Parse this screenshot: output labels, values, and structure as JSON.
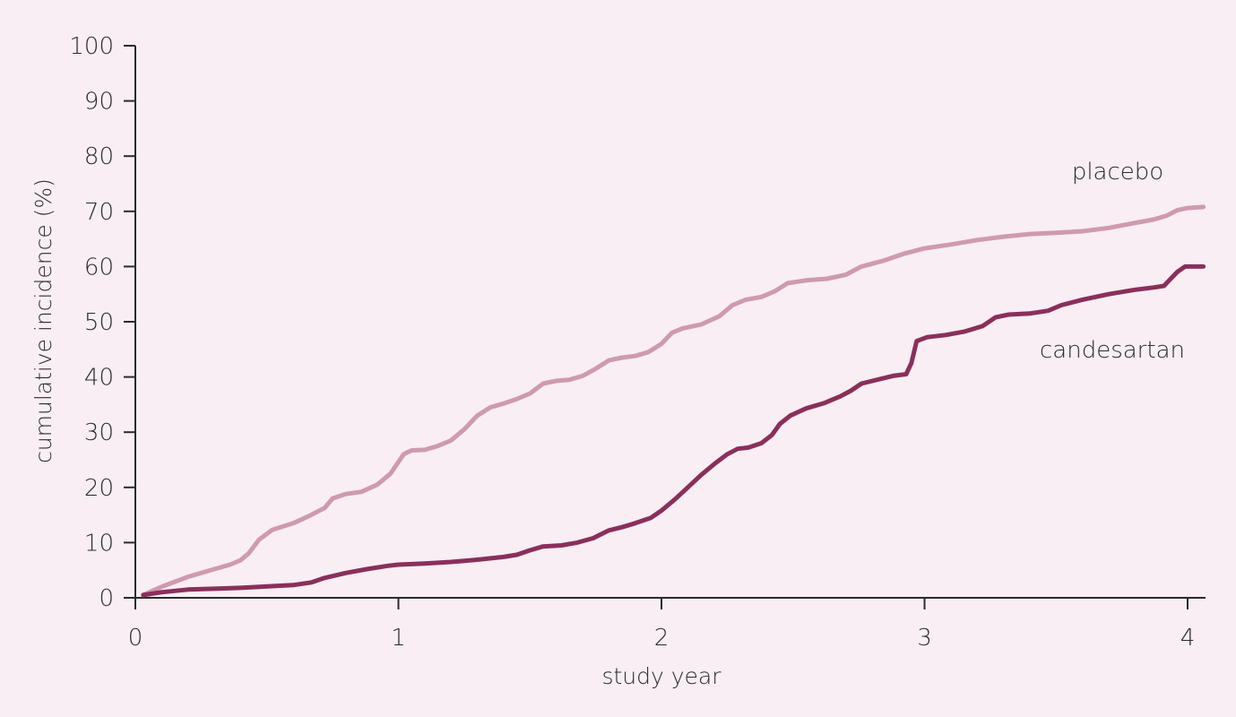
{
  "chart_data": {
    "type": "line",
    "title": "",
    "xlabel": "study year",
    "ylabel": "cumulative incidence (%)",
    "xlim": [
      0,
      4.05
    ],
    "ylim": [
      0,
      100
    ],
    "x_ticks": [
      0,
      1,
      2,
      3,
      4
    ],
    "y_ticks": [
      0,
      10,
      20,
      30,
      40,
      50,
      60,
      70,
      80,
      90,
      100
    ],
    "grid": false,
    "legend": "inline labels at right end of lines",
    "series": [
      {
        "name": "placebo",
        "color": "#cf9aae",
        "points": [
          [
            0.03,
            0.5
          ],
          [
            0.1,
            2.0
          ],
          [
            0.2,
            3.8
          ],
          [
            0.3,
            5.2
          ],
          [
            0.36,
            6.0
          ],
          [
            0.4,
            6.8
          ],
          [
            0.43,
            8.0
          ],
          [
            0.47,
            10.5
          ],
          [
            0.52,
            12.3
          ],
          [
            0.6,
            13.5
          ],
          [
            0.66,
            14.8
          ],
          [
            0.72,
            16.3
          ],
          [
            0.75,
            18.0
          ],
          [
            0.8,
            18.8
          ],
          [
            0.86,
            19.2
          ],
          [
            0.92,
            20.5
          ],
          [
            0.97,
            22.5
          ],
          [
            1.02,
            26.0
          ],
          [
            1.05,
            26.7
          ],
          [
            1.1,
            26.8
          ],
          [
            1.15,
            27.5
          ],
          [
            1.2,
            28.5
          ],
          [
            1.25,
            30.5
          ],
          [
            1.3,
            33.0
          ],
          [
            1.35,
            34.5
          ],
          [
            1.4,
            35.2
          ],
          [
            1.45,
            36.0
          ],
          [
            1.5,
            37.0
          ],
          [
            1.55,
            38.8
          ],
          [
            1.6,
            39.3
          ],
          [
            1.65,
            39.5
          ],
          [
            1.7,
            40.2
          ],
          [
            1.75,
            41.5
          ],
          [
            1.8,
            43.0
          ],
          [
            1.85,
            43.5
          ],
          [
            1.9,
            43.8
          ],
          [
            1.95,
            44.5
          ],
          [
            2.0,
            46.0
          ],
          [
            2.04,
            48.0
          ],
          [
            2.08,
            48.8
          ],
          [
            2.15,
            49.5
          ],
          [
            2.22,
            51.0
          ],
          [
            2.27,
            53.0
          ],
          [
            2.32,
            54.0
          ],
          [
            2.38,
            54.5
          ],
          [
            2.43,
            55.5
          ],
          [
            2.48,
            57.0
          ],
          [
            2.55,
            57.5
          ],
          [
            2.63,
            57.8
          ],
          [
            2.7,
            58.5
          ],
          [
            2.76,
            60.0
          ],
          [
            2.84,
            61.0
          ],
          [
            2.92,
            62.3
          ],
          [
            3.0,
            63.3
          ],
          [
            3.1,
            64.0
          ],
          [
            3.2,
            64.8
          ],
          [
            3.3,
            65.4
          ],
          [
            3.4,
            65.9
          ],
          [
            3.5,
            66.1
          ],
          [
            3.6,
            66.4
          ],
          [
            3.7,
            67.0
          ],
          [
            3.8,
            67.9
          ],
          [
            3.87,
            68.5
          ],
          [
            3.92,
            69.2
          ],
          [
            3.96,
            70.2
          ],
          [
            4.0,
            70.6
          ],
          [
            4.06,
            70.8
          ]
        ]
      },
      {
        "name": "candesartan",
        "color": "#8a2f5a",
        "points": [
          [
            0.03,
            0.5
          ],
          [
            0.1,
            1.0
          ],
          [
            0.2,
            1.5
          ],
          [
            0.4,
            1.8
          ],
          [
            0.6,
            2.3
          ],
          [
            0.67,
            2.8
          ],
          [
            0.72,
            3.6
          ],
          [
            0.8,
            4.5
          ],
          [
            0.88,
            5.2
          ],
          [
            0.96,
            5.8
          ],
          [
            1.0,
            6.0
          ],
          [
            1.1,
            6.2
          ],
          [
            1.2,
            6.5
          ],
          [
            1.3,
            6.9
          ],
          [
            1.4,
            7.4
          ],
          [
            1.45,
            7.8
          ],
          [
            1.5,
            8.6
          ],
          [
            1.55,
            9.3
          ],
          [
            1.62,
            9.5
          ],
          [
            1.68,
            10.0
          ],
          [
            1.74,
            10.8
          ],
          [
            1.8,
            12.2
          ],
          [
            1.85,
            12.8
          ],
          [
            1.9,
            13.5
          ],
          [
            1.96,
            14.5
          ],
          [
            2.0,
            15.8
          ],
          [
            2.05,
            17.8
          ],
          [
            2.1,
            20.0
          ],
          [
            2.15,
            22.2
          ],
          [
            2.2,
            24.2
          ],
          [
            2.25,
            26.0
          ],
          [
            2.29,
            27.0
          ],
          [
            2.33,
            27.2
          ],
          [
            2.38,
            28.0
          ],
          [
            2.42,
            29.5
          ],
          [
            2.45,
            31.5
          ],
          [
            2.49,
            33.0
          ],
          [
            2.55,
            34.3
          ],
          [
            2.62,
            35.3
          ],
          [
            2.68,
            36.5
          ],
          [
            2.72,
            37.5
          ],
          [
            2.76,
            38.8
          ],
          [
            2.82,
            39.5
          ],
          [
            2.88,
            40.2
          ],
          [
            2.93,
            40.5
          ],
          [
            2.95,
            42.5
          ],
          [
            2.97,
            46.5
          ],
          [
            3.01,
            47.2
          ],
          [
            3.08,
            47.6
          ],
          [
            3.15,
            48.2
          ],
          [
            3.22,
            49.2
          ],
          [
            3.27,
            50.8
          ],
          [
            3.32,
            51.3
          ],
          [
            3.4,
            51.5
          ],
          [
            3.47,
            52.0
          ],
          [
            3.52,
            53.0
          ],
          [
            3.6,
            54.0
          ],
          [
            3.7,
            55.0
          ],
          [
            3.8,
            55.8
          ],
          [
            3.87,
            56.2
          ],
          [
            3.91,
            56.5
          ],
          [
            3.93,
            57.5
          ],
          [
            3.96,
            59.0
          ],
          [
            3.99,
            60.0
          ],
          [
            4.06,
            60.0
          ]
        ]
      }
    ]
  }
}
